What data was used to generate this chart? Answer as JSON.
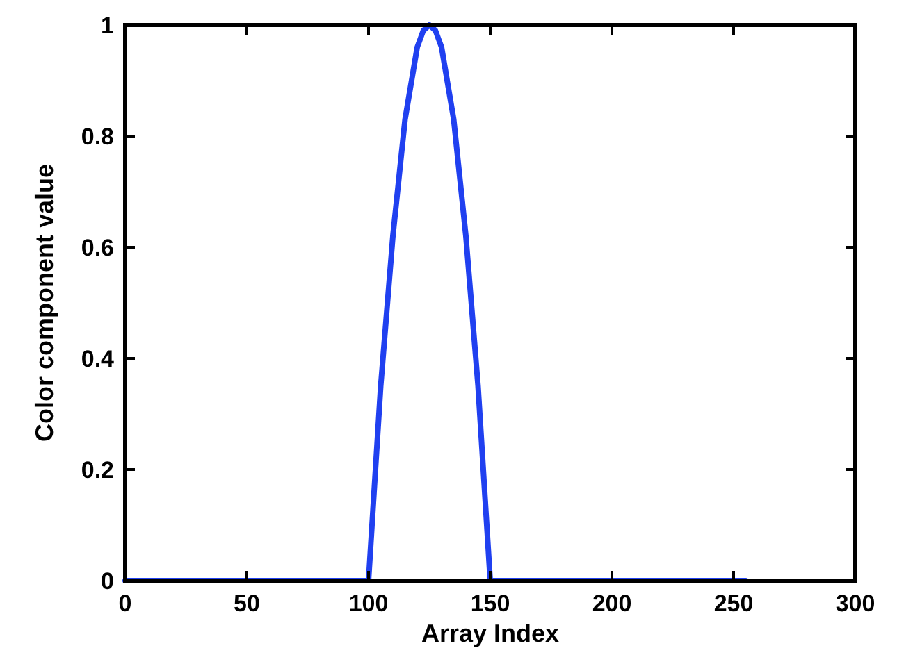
{
  "chart_data": {
    "type": "line",
    "xlabel": "Array Index",
    "ylabel": "Color component value",
    "xlim": [
      0,
      300
    ],
    "xticks": [
      0,
      50,
      100,
      150,
      200,
      250,
      300
    ],
    "ylim": [
      0,
      1
    ],
    "yticks": [
      0,
      0.2,
      0.4,
      0.6,
      0.8,
      1
    ],
    "grid": false,
    "marker": "none",
    "line_style": "solid",
    "series": [
      {
        "color": "#2040f0",
        "x": [
          0,
          100,
          105,
          110,
          115,
          120,
          122.5,
          125,
          127.5,
          130,
          135,
          140,
          145,
          150,
          255
        ],
        "values": [
          0,
          0,
          0.35,
          0.62,
          0.83,
          0.96,
          0.99,
          1,
          0.99,
          0.96,
          0.83,
          0.62,
          0.35,
          0,
          0
        ]
      }
    ]
  }
}
